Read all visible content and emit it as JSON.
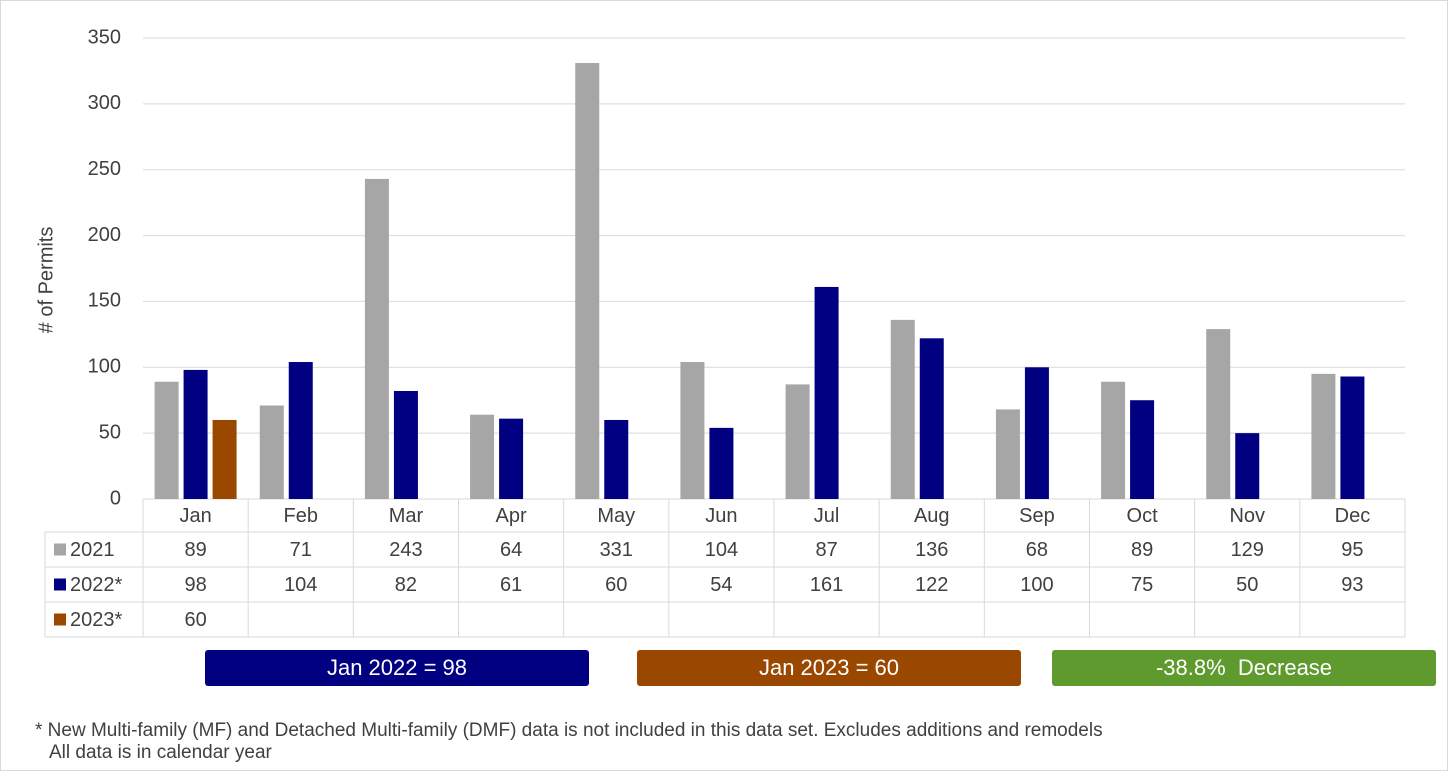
{
  "chart_data": {
    "type": "bar",
    "y_label": "# of Permits",
    "categories": [
      "Jan",
      "Feb",
      "Mar",
      "Apr",
      "May",
      "Jun",
      "Jul",
      "Aug",
      "Sep",
      "Oct",
      "Nov",
      "Dec"
    ],
    "series": [
      {
        "name": "2021",
        "color": "#a6a6a6",
        "values": [
          89,
          71,
          243,
          64,
          331,
          104,
          87,
          136,
          68,
          89,
          129,
          95
        ]
      },
      {
        "name": "2022*",
        "color": "#000080",
        "values": [
          98,
          104,
          82,
          61,
          60,
          54,
          161,
          122,
          100,
          75,
          50,
          93
        ]
      },
      {
        "name": "2023*",
        "color": "#9a4800",
        "values": [
          60,
          null,
          null,
          null,
          null,
          null,
          null,
          null,
          null,
          null,
          null,
          null
        ]
      }
    ],
    "ylim": [
      0,
      350
    ],
    "yticks": [
      0,
      50,
      100,
      150,
      200,
      250,
      300,
      350
    ],
    "grid": true,
    "annotations": [
      {
        "text": "Jan 2022 = 98",
        "color": "#000080"
      },
      {
        "text": "Jan 2023 = 60",
        "color": "#9a4800"
      },
      {
        "text": "-38.8%  Decrease",
        "color": "#5f9a2e"
      }
    ],
    "footnotes": [
      "* New Multi-family (MF) and Detached Multi-family (DMF) data is not included in this data set. Excludes additions and remodels",
      "All data is in calendar year"
    ]
  }
}
